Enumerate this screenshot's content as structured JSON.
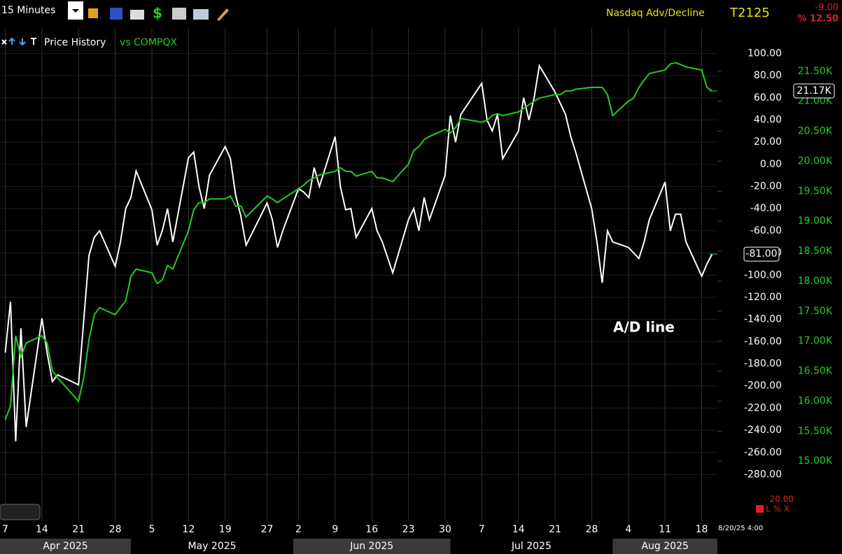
{
  "toolbar": {
    "interval": "15 Minutes",
    "name": "Nasdaq Adv/Decline",
    "symbol": "T2125",
    "change": "-9.00",
    "change_pct": "% 12.50"
  },
  "legend": {
    "title": "Price History"
  },
  "footer": {
    "value": "20.00",
    "timestamp": "8/20/25 4:00",
    "controls": "L % X"
  },
  "chart_data": {
    "type": "line",
    "x": [
      "2025-04-07",
      "2025-04-08",
      "2025-04-09",
      "2025-04-10",
      "2025-04-11",
      "2025-04-14",
      "2025-04-15",
      "2025-04-16",
      "2025-04-17",
      "2025-04-21",
      "2025-04-22",
      "2025-04-23",
      "2025-04-24",
      "2025-04-25",
      "2025-04-28",
      "2025-04-29",
      "2025-04-30",
      "2025-05-01",
      "2025-05-02",
      "2025-05-05",
      "2025-05-06",
      "2025-05-07",
      "2025-05-08",
      "2025-05-09",
      "2025-05-12",
      "2025-05-13",
      "2025-05-14",
      "2025-05-15",
      "2025-05-16",
      "2025-05-19",
      "2025-05-20",
      "2025-05-21",
      "2025-05-22",
      "2025-05-23",
      "2025-05-27",
      "2025-05-28",
      "2025-05-29",
      "2025-05-30",
      "2025-06-02",
      "2025-06-03",
      "2025-06-04",
      "2025-06-05",
      "2025-06-06",
      "2025-06-09",
      "2025-06-10",
      "2025-06-11",
      "2025-06-12",
      "2025-06-13",
      "2025-06-16",
      "2025-06-17",
      "2025-06-18",
      "2025-06-20",
      "2025-06-23",
      "2025-06-24",
      "2025-06-25",
      "2025-06-26",
      "2025-06-27",
      "2025-06-30",
      "2025-07-01",
      "2025-07-02",
      "2025-07-03",
      "2025-07-07",
      "2025-07-08",
      "2025-07-09",
      "2025-07-10",
      "2025-07-11",
      "2025-07-14",
      "2025-07-15",
      "2025-07-16",
      "2025-07-17",
      "2025-07-18",
      "2025-07-21",
      "2025-07-22",
      "2025-07-23",
      "2025-07-24",
      "2025-07-25",
      "2025-07-28",
      "2025-07-29",
      "2025-07-30",
      "2025-07-31",
      "2025-08-01",
      "2025-08-04",
      "2025-08-05",
      "2025-08-06",
      "2025-08-07",
      "2025-08-08",
      "2025-08-11",
      "2025-08-12",
      "2025-08-13",
      "2025-08-14",
      "2025-08-15",
      "2025-08-18",
      "2025-08-19",
      "2025-08-20"
    ],
    "series": [
      {
        "name": "A/D line",
        "color": "#ffffff",
        "axis": "y",
        "last_label": {
          "value": -81,
          "label": "-81.00"
        },
        "values": [
          -170,
          -124,
          -250,
          -148,
          -237,
          -139,
          -170,
          -196,
          -190,
          -199,
          -140,
          -82,
          -66,
          -60,
          -92,
          -70,
          -40,
          -30,
          -6,
          -41,
          -73,
          -60,
          -40,
          -70,
          6,
          11,
          -20,
          -40,
          -10,
          16,
          5,
          -28,
          -47,
          -73,
          -35,
          -50,
          -75,
          -60,
          -22,
          -25,
          -30,
          -3,
          -20,
          25,
          -20,
          -41,
          -40,
          -66,
          -40,
          -60,
          -70,
          -98,
          -50,
          -40,
          -60,
          -30,
          -50,
          -10,
          44,
          20,
          45,
          73,
          40,
          30,
          45,
          5,
          30,
          60,
          40,
          60,
          89,
          65,
          55,
          45,
          25,
          10,
          -40,
          -70,
          -107,
          -60,
          -70,
          -75,
          -80,
          -85,
          -70,
          -50,
          -16,
          -60,
          -45,
          -45,
          -70,
          -101,
          -90,
          -81
        ]
      },
      {
        "name": "vs COMPQX",
        "color": "#22cc22",
        "axis": "y2",
        "last_label": {
          "value": 21170,
          "label": "21.17K"
        },
        "values": [
          15690,
          15920,
          17090,
          16740,
          16970,
          17090,
          16970,
          16510,
          16390,
          16000,
          16390,
          17030,
          17440,
          17560,
          17440,
          17560,
          17670,
          18080,
          18200,
          18140,
          17960,
          18020,
          18260,
          18200,
          18840,
          19190,
          19310,
          19310,
          19370,
          19370,
          19420,
          19250,
          19250,
          19070,
          19420,
          19370,
          19310,
          19370,
          19540,
          19600,
          19680,
          19720,
          19770,
          19830,
          19890,
          19830,
          19830,
          19750,
          19830,
          19720,
          19720,
          19660,
          19950,
          20180,
          20240,
          20360,
          20410,
          20530,
          20470,
          20560,
          20710,
          20650,
          20680,
          20760,
          20790,
          20760,
          20820,
          20880,
          20940,
          21000,
          21050,
          21110,
          21110,
          21170,
          21170,
          21200,
          21230,
          21230,
          21230,
          21110,
          20760,
          21000,
          21050,
          21230,
          21350,
          21460,
          21520,
          21620,
          21640,
          21610,
          21570,
          21520,
          21230,
          21170
        ]
      }
    ],
    "annotation": "A/D line",
    "xlim": [
      "2025-04-06",
      "2025-08-21"
    ],
    "xticks": [
      {
        "value": "2025-04-07",
        "label": "7"
      },
      {
        "value": "2025-04-14",
        "label": "14"
      },
      {
        "value": "2025-04-21",
        "label": "21"
      },
      {
        "value": "2025-04-28",
        "label": "28"
      },
      {
        "value": "2025-05-05",
        "label": "5"
      },
      {
        "value": "2025-05-12",
        "label": "12"
      },
      {
        "value": "2025-05-19",
        "label": "19"
      },
      {
        "value": "2025-05-27",
        "label": "27"
      },
      {
        "value": "2025-06-02",
        "label": "2"
      },
      {
        "value": "2025-06-09",
        "label": "9"
      },
      {
        "value": "2025-06-16",
        "label": "16"
      },
      {
        "value": "2025-06-23",
        "label": "23"
      },
      {
        "value": "2025-06-30",
        "label": "30"
      },
      {
        "value": "2025-07-07",
        "label": "7"
      },
      {
        "value": "2025-07-14",
        "label": "14"
      },
      {
        "value": "2025-07-21",
        "label": "21"
      },
      {
        "value": "2025-07-28",
        "label": "28"
      },
      {
        "value": "2025-08-04",
        "label": "4"
      },
      {
        "value": "2025-08-11",
        "label": "11"
      },
      {
        "value": "2025-08-18",
        "label": "18"
      }
    ],
    "months": [
      {
        "value": "2025-04-01",
        "label": "Apr 2025"
      },
      {
        "value": "2025-05-01",
        "label": "May 2025"
      },
      {
        "value": "2025-06-01",
        "label": "Jun 2025"
      },
      {
        "value": "2025-07-01",
        "label": "Jul 2025"
      },
      {
        "value": "2025-08-01",
        "label": "Aug 2025"
      }
    ],
    "ylim": [
      -322,
      123
    ],
    "yticks": [
      {
        "value": 100,
        "label": "100.00"
      },
      {
        "value": 80,
        "label": "80.00"
      },
      {
        "value": 60,
        "label": "60.00"
      },
      {
        "value": 40,
        "label": "40.00"
      },
      {
        "value": 20,
        "label": "20.00"
      },
      {
        "value": 0,
        "label": "0.00"
      },
      {
        "value": -20,
        "label": "-20.00"
      },
      {
        "value": -40,
        "label": "-40.00"
      },
      {
        "value": -60,
        "label": "-60.00"
      },
      {
        "value": -80,
        "label": "-80.00"
      },
      {
        "value": -100,
        "label": "-100.00"
      },
      {
        "value": -120,
        "label": "-120.00"
      },
      {
        "value": -140,
        "label": "-140.00"
      },
      {
        "value": -160,
        "label": "-160.00"
      },
      {
        "value": -180,
        "label": "-180.00"
      },
      {
        "value": -200,
        "label": "-200.00"
      },
      {
        "value": -220,
        "label": "-220.00"
      },
      {
        "value": -240,
        "label": "-240.00"
      },
      {
        "value": -260,
        "label": "-260.00"
      },
      {
        "value": -280,
        "label": "-280.00"
      }
    ],
    "y2lim": [
      14000,
      22220
    ],
    "y2ticks": [
      {
        "value": 15000,
        "label": "15.00K"
      },
      {
        "value": 15500,
        "label": "15.50K"
      },
      {
        "value": 16000,
        "label": "16.00K"
      },
      {
        "value": 16500,
        "label": "16.50K"
      },
      {
        "value": 17000,
        "label": "17.00K"
      },
      {
        "value": 17500,
        "label": "17.50K"
      },
      {
        "value": 18000,
        "label": "18.00K"
      },
      {
        "value": 18500,
        "label": "18.50K"
      },
      {
        "value": 19000,
        "label": "19.00K"
      },
      {
        "value": 19500,
        "label": "19.50K"
      },
      {
        "value": 20000,
        "label": "20.00K"
      },
      {
        "value": 20500,
        "label": "20.50K"
      },
      {
        "value": 21000,
        "label": "21.00K"
      },
      {
        "value": 21500,
        "label": "21.50K"
      }
    ],
    "grid": true
  }
}
